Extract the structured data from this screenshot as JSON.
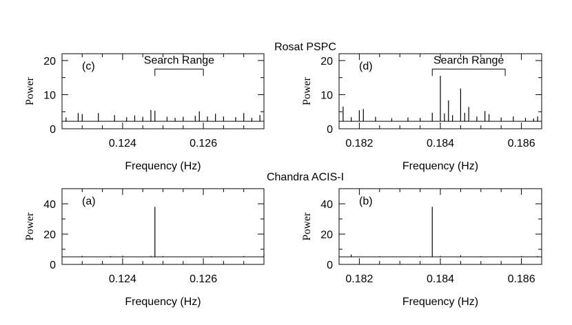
{
  "figure": {
    "group_titles": [
      "Rosat PSPC",
      "Chandra ACIS-I"
    ]
  },
  "chart_data": [
    {
      "type": "line",
      "panel_label": "(c)",
      "group": "Rosat PSPC",
      "xlabel": "Frequency (Hz)",
      "ylabel": "Power",
      "xlim": [
        0.1225,
        0.1275
      ],
      "ylim": [
        0,
        22
      ],
      "xticks": [
        0.124,
        0.126
      ],
      "xtick_labels": [
        "0.124",
        "0.126"
      ],
      "yticks": [
        0,
        10,
        20
      ],
      "ytick_labels": [
        "0",
        "10",
        "20"
      ],
      "baseline": 2.2,
      "annotation": {
        "text": "Search Range",
        "x_start": 0.1248,
        "x_end": 0.126,
        "y": 17.5
      },
      "peaks": [
        [
          0.1226,
          3.3
        ],
        [
          0.1229,
          4.6
        ],
        [
          0.123,
          4.3
        ],
        [
          0.1234,
          4.6
        ],
        [
          0.1238,
          4.0
        ],
        [
          0.1241,
          3.4
        ],
        [
          0.1243,
          3.9
        ],
        [
          0.1245,
          3.5
        ],
        [
          0.1247,
          5.5
        ],
        [
          0.1248,
          5.3
        ],
        [
          0.1251,
          3.5
        ],
        [
          0.1253,
          3.2
        ],
        [
          0.1255,
          3.5
        ],
        [
          0.1258,
          3.8
        ],
        [
          0.1259,
          5.1
        ],
        [
          0.1261,
          3.6
        ],
        [
          0.1263,
          4.4
        ],
        [
          0.1265,
          3.6
        ],
        [
          0.1268,
          3.4
        ],
        [
          0.127,
          4.6
        ],
        [
          0.1272,
          3.2
        ],
        [
          0.1274,
          4.0
        ]
      ]
    },
    {
      "type": "line",
      "panel_label": "(d)",
      "group": "Rosat PSPC",
      "xlabel": "Frequency (Hz)",
      "ylabel": "Power",
      "xlim": [
        0.1815,
        0.1865
      ],
      "ylim": [
        0,
        22
      ],
      "xticks": [
        0.182,
        0.184,
        0.186
      ],
      "xtick_labels": [
        "0.182",
        "0.184",
        "0.186"
      ],
      "yticks": [
        0,
        10,
        20
      ],
      "ytick_labels": [
        "0",
        "10",
        "20"
      ],
      "baseline": 2.2,
      "annotation": {
        "text": "Search Range",
        "x_start": 0.1838,
        "x_end": 0.1856,
        "y": 17.5
      },
      "peaks": [
        [
          0.1816,
          6.5
        ],
        [
          0.1818,
          3.4
        ],
        [
          0.182,
          5.4
        ],
        [
          0.1821,
          5.8
        ],
        [
          0.1824,
          3.5
        ],
        [
          0.1828,
          3.1
        ],
        [
          0.1832,
          3.3
        ],
        [
          0.1835,
          3.2
        ],
        [
          0.1838,
          4.7
        ],
        [
          0.184,
          15.5
        ],
        [
          0.1841,
          4.5
        ],
        [
          0.1842,
          8.3
        ],
        [
          0.1843,
          4.0
        ],
        [
          0.1845,
          11.8
        ],
        [
          0.1846,
          4.7
        ],
        [
          0.1847,
          6.4
        ],
        [
          0.1849,
          3.6
        ],
        [
          0.1851,
          5.2
        ],
        [
          0.1852,
          4.3
        ],
        [
          0.1855,
          3.3
        ],
        [
          0.1858,
          3.6
        ],
        [
          0.1861,
          3.2
        ],
        [
          0.1863,
          3.0
        ],
        [
          0.1864,
          3.6
        ]
      ]
    },
    {
      "type": "line",
      "panel_label": "(a)",
      "group": "Chandra ACIS-I",
      "xlabel": "Frequency (Hz)",
      "ylabel": "Power",
      "xlim": [
        0.1225,
        0.1275
      ],
      "ylim": [
        0,
        50
      ],
      "xticks": [
        0.124,
        0.126
      ],
      "xtick_labels": [
        "0.124",
        "0.126"
      ],
      "yticks": [
        0,
        20,
        40
      ],
      "ytick_labels": [
        "0",
        "20",
        "40"
      ],
      "baseline": 5.0,
      "peaks": [
        [
          0.123,
          5.6
        ],
        [
          0.1237,
          5.5
        ],
        [
          0.124,
          5.7
        ],
        [
          0.1247,
          5.6
        ],
        [
          0.1248,
          38.0
        ],
        [
          0.125,
          5.5
        ],
        [
          0.1262,
          5.4
        ],
        [
          0.127,
          5.5
        ],
        [
          0.1275,
          6.8
        ]
      ]
    },
    {
      "type": "line",
      "panel_label": "(b)",
      "group": "Chandra ACIS-I",
      "xlabel": "Frequency (Hz)",
      "ylabel": "Power",
      "xlim": [
        0.1815,
        0.1865
      ],
      "ylim": [
        0,
        50
      ],
      "xticks": [
        0.182,
        0.184,
        0.186
      ],
      "xtick_labels": [
        "0.182",
        "0.184",
        "0.186"
      ],
      "yticks": [
        0,
        20,
        40
      ],
      "ytick_labels": [
        "0",
        "20",
        "40"
      ],
      "baseline": 5.0,
      "peaks": [
        [
          0.1818,
          6.5
        ],
        [
          0.1825,
          5.4
        ],
        [
          0.1835,
          5.5
        ],
        [
          0.1838,
          38.0
        ],
        [
          0.184,
          5.6
        ],
        [
          0.1845,
          6.0
        ],
        [
          0.185,
          5.4
        ],
        [
          0.186,
          5.5
        ],
        [
          0.1864,
          5.5
        ]
      ]
    }
  ]
}
